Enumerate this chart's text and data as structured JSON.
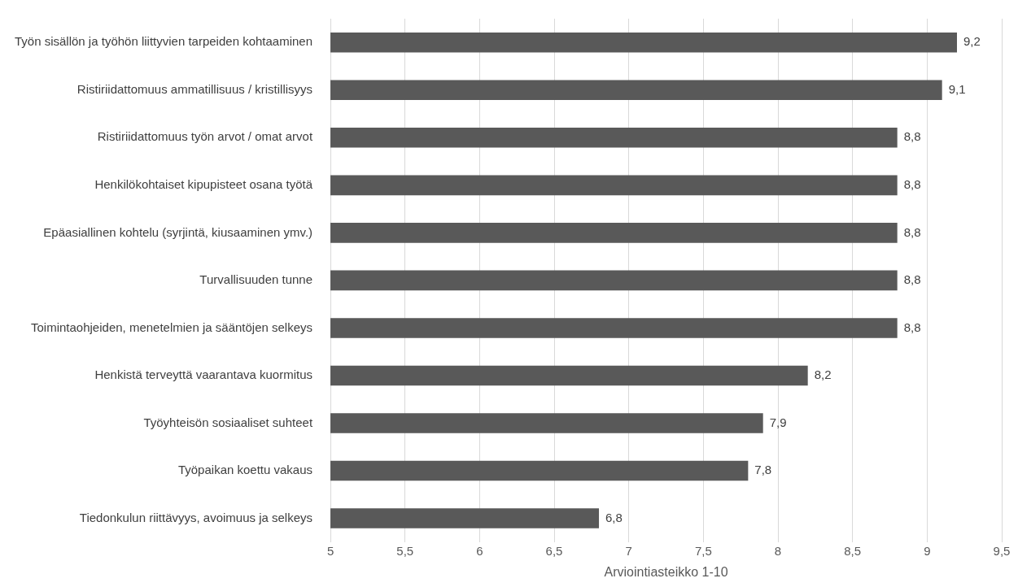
{
  "chart_data": {
    "type": "bar",
    "orientation": "horizontal",
    "xlabel": "Arviointiasteikko 1-10",
    "categories": [
      "Työn sisällön ja työhön liittyvien tarpeiden kohtaaminen",
      "Ristiriidattomuus ammatillisuus / kristillisyys",
      "Ristiriidattomuus työn arvot / omat arvot",
      "Henkilökohtaiset kipupisteet osana työtä",
      "Epäasiallinen kohtelu (syrjintä, kiusaaminen ymv.)",
      "Turvallisuuden tunne",
      "Toimintaohjeiden, menetelmien ja sääntöjen selkeys",
      "Henkistä terveyttä vaarantava kuormitus",
      "Työyhteisön sosiaaliset suhteet",
      "Työpaikan koettu vakaus",
      "Tiedonkulun riittävyys, avoimuus ja selkeys"
    ],
    "values": [
      9.2,
      9.1,
      8.8,
      8.8,
      8.8,
      8.8,
      8.8,
      8.2,
      7.9,
      7.8,
      6.8
    ],
    "value_labels": [
      "9,2",
      "9,1",
      "8,8",
      "8,8",
      "8,8",
      "8,8",
      "8,8",
      "8,2",
      "7,9",
      "7,8",
      "6,8"
    ],
    "color": "#595959",
    "xlim": [
      5,
      9.5
    ],
    "xticks": [
      5,
      {
        "value": 5.5,
        "label": "5,5"
      },
      6,
      {
        "value": 6.5,
        "label": "6,5"
      },
      7,
      {
        "value": 7.5,
        "label": "7,5"
      },
      8,
      {
        "value": 8.5,
        "label": "8,5"
      },
      9,
      {
        "value": 9.5,
        "label": "9,5"
      }
    ],
    "grid": "x",
    "legend": false
  }
}
